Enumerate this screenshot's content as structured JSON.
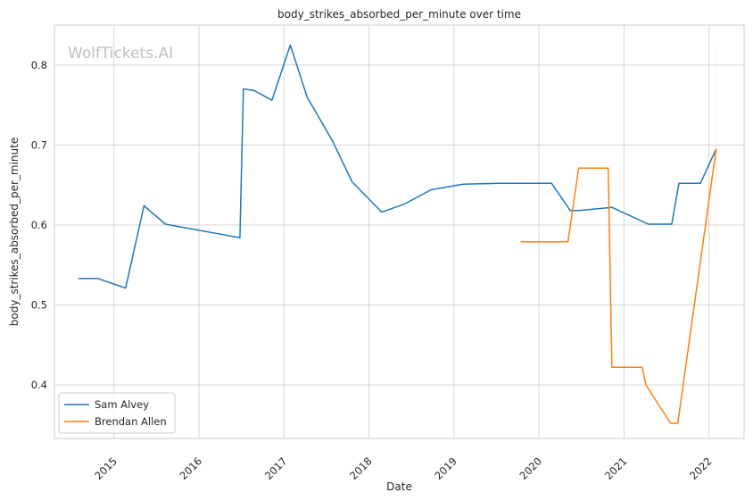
{
  "chart_data": {
    "type": "line",
    "title": "body_strikes_absorbed_per_minute over time",
    "xlabel": "Date",
    "ylabel": "body_strikes_absorbed_per_minute",
    "watermark": "WolfTickets.AI",
    "xlim": [
      "2014-04-20",
      "2022-06-01"
    ],
    "ylim": [
      0.333,
      0.85
    ],
    "x_ticks": [
      "2015-01-01",
      "2016-01-01",
      "2017-01-01",
      "2018-01-01",
      "2019-01-01",
      "2020-01-01",
      "2021-01-01",
      "2022-01-01"
    ],
    "x_tick_labels": [
      "2015",
      "2016",
      "2017",
      "2018",
      "2019",
      "2020",
      "2021",
      "2022"
    ],
    "y_ticks": [
      0.4,
      0.5,
      0.6,
      0.7,
      0.8
    ],
    "y_tick_labels": [
      "0.4",
      "0.5",
      "0.6",
      "0.7",
      "0.8"
    ],
    "grid": true,
    "legend_position": "lower-left",
    "series": [
      {
        "name": "Sam Alvey",
        "color": "#1f77b4",
        "points": [
          [
            "2014-08-01",
            0.533
          ],
          [
            "2014-10-25",
            0.533
          ],
          [
            "2015-02-20",
            0.521
          ],
          [
            "2015-05-10",
            0.624
          ],
          [
            "2015-08-10",
            0.601
          ],
          [
            "2016-06-25",
            0.584
          ],
          [
            "2016-07-10",
            0.77
          ],
          [
            "2016-08-25",
            0.768
          ],
          [
            "2016-11-10",
            0.756
          ],
          [
            "2017-01-28",
            0.825
          ],
          [
            "2017-04-10",
            0.76
          ],
          [
            "2017-07-28",
            0.705
          ],
          [
            "2017-10-20",
            0.654
          ],
          [
            "2018-02-25",
            0.616
          ],
          [
            "2018-06-01",
            0.626
          ],
          [
            "2018-09-25",
            0.644
          ],
          [
            "2019-02-10",
            0.651
          ],
          [
            "2019-07-15",
            0.652
          ],
          [
            "2020-02-25",
            0.652
          ],
          [
            "2020-05-15",
            0.618
          ],
          [
            "2020-06-20",
            0.618
          ],
          [
            "2020-11-10",
            0.622
          ],
          [
            "2021-04-15",
            0.601
          ],
          [
            "2021-07-25",
            0.601
          ],
          [
            "2021-08-25",
            0.652
          ],
          [
            "2021-11-25",
            0.652
          ],
          [
            "2022-02-01",
            0.695
          ]
        ]
      },
      {
        "name": "Brendan Allen",
        "color": "#ff7f0e",
        "points": [
          [
            "2019-10-15",
            0.579
          ],
          [
            "2020-05-05",
            0.579
          ],
          [
            "2020-06-20",
            0.671
          ],
          [
            "2020-10-25",
            0.671
          ],
          [
            "2020-11-10",
            0.422
          ],
          [
            "2021-03-20",
            0.422
          ],
          [
            "2021-04-05",
            0.4
          ],
          [
            "2021-07-20",
            0.352
          ],
          [
            "2021-08-20",
            0.352
          ],
          [
            "2022-02-01",
            0.695
          ]
        ]
      }
    ]
  }
}
